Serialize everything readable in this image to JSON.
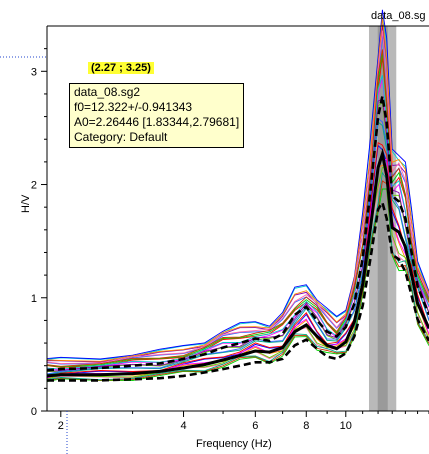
{
  "file_title": "data_08.sg",
  "cursor_coords": "(2.27 ; 3.25)",
  "tooltip": {
    "lines": [
      "data_08.sg2",
      "f0=12.322+/-0.941343",
      "A0=2.26446 [1.83344,2.79681]",
      "Category: Default"
    ]
  },
  "chart_data": {
    "type": "line",
    "xlabel": "Frequency (Hz)",
    "ylabel": "H/V",
    "xscale": "log",
    "xlim": [
      1.85,
      16
    ],
    "ylim": [
      0,
      3.4
    ],
    "x_tick_labels": [
      "2",
      "4",
      "6",
      "8",
      "10"
    ],
    "y_tick_labels": [
      "0",
      "1",
      "2",
      "3"
    ],
    "f0_band": {
      "low": 11.4,
      "high": 13.3,
      "center": 12.32
    },
    "x": [
      1.85,
      2.0,
      2.5,
      3.0,
      3.5,
      4.0,
      4.5,
      5.0,
      5.5,
      6.0,
      6.5,
      7.0,
      7.5,
      8.0,
      8.5,
      9.0,
      9.5,
      10.0,
      10.5,
      11.0,
      11.5,
      12.0,
      12.3,
      12.6,
      13.0,
      13.5,
      14.0,
      14.5,
      15.0,
      16.0
    ],
    "series": [
      {
        "values": [
          0.36,
          0.37,
          0.38,
          0.4,
          0.42,
          0.46,
          0.5,
          0.56,
          0.6,
          0.64,
          0.62,
          0.68,
          0.85,
          0.92,
          0.8,
          0.7,
          0.66,
          0.74,
          0.95,
          1.35,
          1.95,
          2.6,
          2.78,
          2.55,
          1.9,
          1.85,
          1.7,
          1.4,
          1.1,
          0.85
        ]
      },
      {
        "values": [
          0.31,
          0.32,
          0.32,
          0.33,
          0.35,
          0.38,
          0.41,
          0.45,
          0.49,
          0.53,
          0.52,
          0.56,
          0.7,
          0.76,
          0.66,
          0.58,
          0.55,
          0.61,
          0.79,
          1.12,
          1.62,
          2.15,
          2.27,
          2.08,
          1.62,
          1.58,
          1.45,
          1.2,
          0.95,
          0.73
        ]
      },
      {
        "values": [
          0.27,
          0.27,
          0.27,
          0.28,
          0.29,
          0.31,
          0.34,
          0.37,
          0.4,
          0.43,
          0.43,
          0.46,
          0.58,
          0.63,
          0.55,
          0.48,
          0.46,
          0.51,
          0.66,
          0.93,
          1.35,
          1.78,
          1.84,
          1.7,
          1.38,
          1.34,
          1.23,
          1.02,
          0.81,
          0.62
        ]
      }
    ]
  },
  "colors": {
    "band": "#b9b9b9",
    "band_center": "#9a9a9a",
    "curves": [
      "#00d000",
      "#ff0000",
      "#0000ff",
      "#00cccc",
      "#ff00ff",
      "#ff8800",
      "#8800aa",
      "#66cc00",
      "#ff66aa",
      "#3366ff",
      "#00aa88",
      "#cc3300"
    ]
  }
}
